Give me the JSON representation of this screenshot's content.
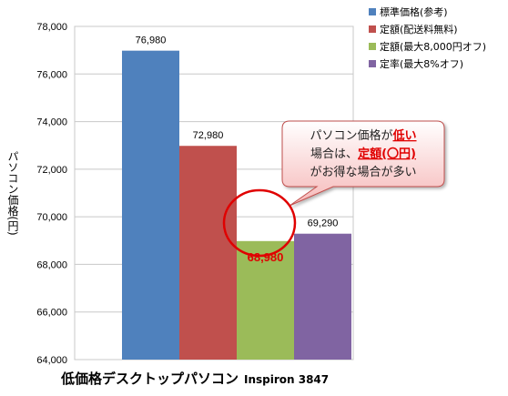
{
  "chart_data": {
    "type": "bar",
    "title": "",
    "xlabel": "低価格デスクトップパソコン",
    "xlabel_model": "Inspiron 3847",
    "ylabel": "パソコン価格(円)",
    "ylim": [
      64000,
      78000
    ],
    "yticks": [
      "64,000",
      "66,000",
      "68,000",
      "70,000",
      "72,000",
      "74,000",
      "76,000",
      "78,000"
    ],
    "grid": true,
    "legend_position": "top-right",
    "categories": [
      "低価格デスクトップパソコン Inspiron 3847"
    ],
    "series": [
      {
        "name": "標準価格(参考)",
        "values": [
          76980
        ],
        "label": "76,980",
        "color": "#4f81bd"
      },
      {
        "name": "定額(配送料無料)",
        "values": [
          72980
        ],
        "label": "72,980",
        "color": "#c0504d"
      },
      {
        "name": "定額(最大8,000円オフ)",
        "values": [
          68980
        ],
        "label": "68,980",
        "color": "#9bbb59"
      },
      {
        "name": "定率(最大8%オフ)",
        "values": [
          69290
        ],
        "label": "69,290",
        "color": "#8064a2"
      }
    ],
    "annotation": {
      "line1_prefix": "パソコン価格が",
      "line1_emph": "低い",
      "line2_prefix": "場合は、",
      "line2_emph": "定額(〇円)",
      "line3": "がお得な場合が多い",
      "highlight_series_index": 2
    }
  }
}
